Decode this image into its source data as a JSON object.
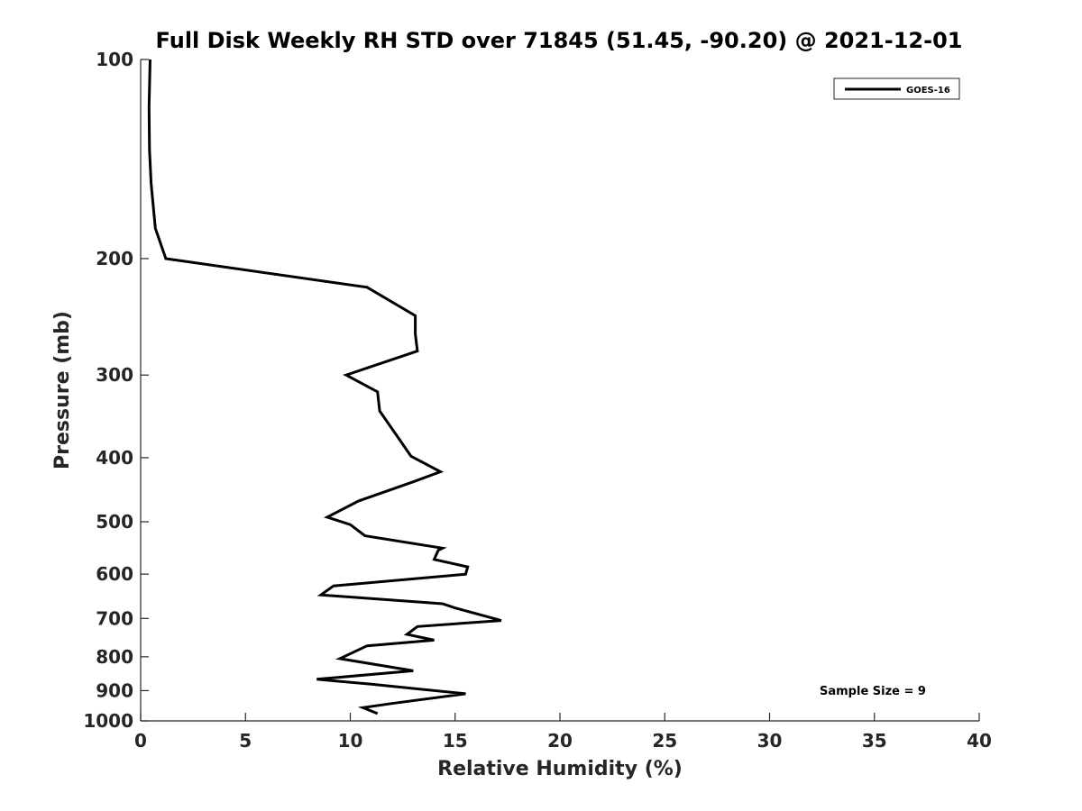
{
  "chart_data": {
    "type": "line",
    "title": "Full Disk Weekly RH STD over 71845 (51.45, -90.20) @ 2021-12-01",
    "xlabel": "Relative Humidity (%)",
    "ylabel": "Pressure (mb)",
    "xlim": [
      0,
      40
    ],
    "ylim": [
      1000,
      100
    ],
    "y_scale": "log",
    "grid": false,
    "x_ticks": [
      "0",
      "5",
      "10",
      "15",
      "20",
      "25",
      "30",
      "35",
      "40"
    ],
    "y_ticks": [
      "100",
      "200",
      "300",
      "400",
      "500",
      "600",
      "700",
      "800",
      "900",
      "1000"
    ],
    "legend": {
      "position": "top-right",
      "entries": [
        "GOES-16"
      ]
    },
    "annotation": "Sample Size = 9",
    "series": [
      {
        "name": "GOES-16",
        "color": "#000000",
        "x": [
          0.45,
          0.4,
          0.42,
          0.5,
          0.7,
          1.2,
          10.8,
          13.1,
          13.1,
          13.2,
          9.8,
          11.3,
          11.4,
          12.0,
          12.9,
          14.3,
          13.0,
          10.4,
          8.9,
          10.0,
          10.7,
          14.4,
          14.2,
          14.0,
          15.6,
          15.5,
          9.2,
          8.6,
          14.4,
          15.0,
          17.2,
          13.2,
          12.7,
          14.0,
          10.8,
          9.5,
          13.0,
          8.4,
          11.0,
          15.5,
          12.1,
          10.6,
          11.3
        ],
        "y": [
          100,
          118,
          137,
          154,
          180,
          200,
          221,
          244,
          260,
          276,
          300,
          318,
          340,
          362,
          398,
          420,
          435,
          465,
          492,
          505,
          525,
          548,
          552,
          570,
          585,
          600,
          625,
          645,
          665,
          675,
          705,
          720,
          740,
          755,
          770,
          805,
          840,
          865,
          880,
          910,
          940,
          955,
          975
        ]
      }
    ]
  }
}
